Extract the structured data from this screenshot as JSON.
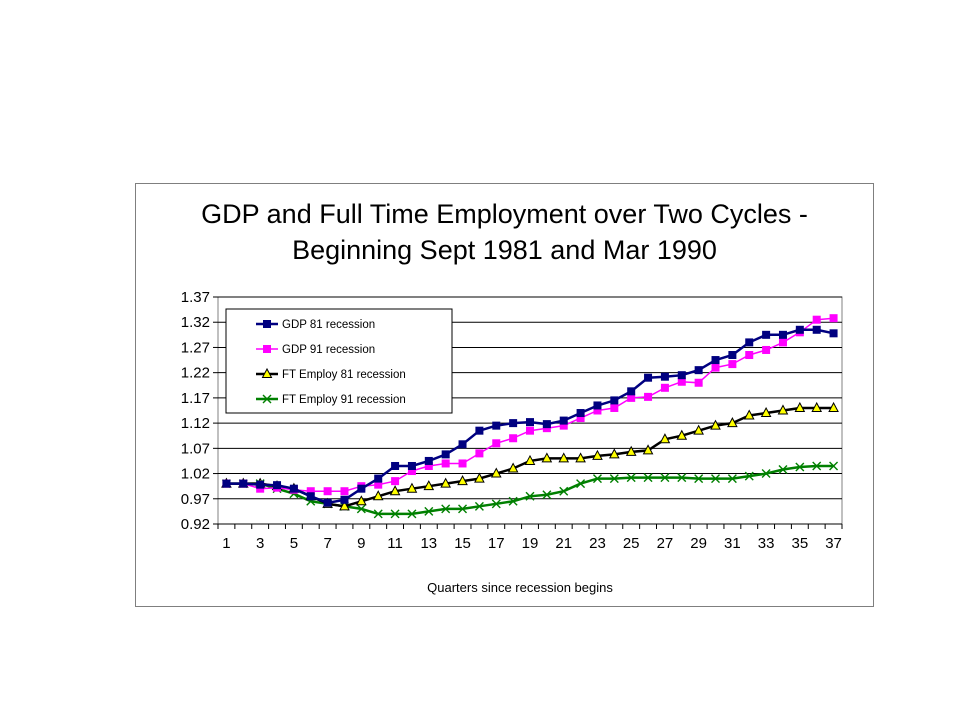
{
  "chart_data": {
    "type": "line",
    "title_line1": "GDP and Full Time Employment over Two Cycles -",
    "title_line2": "Beginning Sept 1981 and Mar 1990",
    "xlabel": "Quarters since recession begins",
    "ylabel": "",
    "ylim": [
      0.92,
      1.37
    ],
    "y_ticks": [
      0.92,
      0.97,
      1.02,
      1.07,
      1.12,
      1.17,
      1.22,
      1.27,
      1.32,
      1.37
    ],
    "x_tick_labels": [
      1,
      3,
      5,
      7,
      9,
      11,
      13,
      15,
      17,
      19,
      21,
      23,
      25,
      27,
      29,
      31,
      33,
      35,
      37
    ],
    "x": [
      1,
      2,
      3,
      4,
      5,
      6,
      7,
      8,
      9,
      10,
      11,
      12,
      13,
      14,
      15,
      16,
      17,
      18,
      19,
      20,
      21,
      22,
      23,
      24,
      25,
      26,
      27,
      28,
      29,
      30,
      31,
      32,
      33,
      34,
      35,
      36,
      37
    ],
    "grid": "horizontal",
    "legend_position": "top-left",
    "series": [
      {
        "name": "GDP 81 recession",
        "color": "#000080",
        "marker": "square",
        "values": [
          1.0,
          1.0,
          0.998,
          0.997,
          0.99,
          0.975,
          0.962,
          0.968,
          0.99,
          1.01,
          1.035,
          1.035,
          1.045,
          1.058,
          1.078,
          1.105,
          1.115,
          1.12,
          1.122,
          1.118,
          1.125,
          1.14,
          1.155,
          1.165,
          1.183,
          1.21,
          1.212,
          1.215,
          1.225,
          1.245,
          1.255,
          1.28,
          1.295,
          1.295,
          1.305,
          1.305,
          1.298
        ]
      },
      {
        "name": "GDP 91 recession",
        "color": "#ff00ff",
        "marker": "square",
        "values": [
          1.0,
          1.0,
          0.99,
          0.992,
          0.988,
          0.985,
          0.985,
          0.985,
          0.995,
          0.998,
          1.005,
          1.025,
          1.035,
          1.04,
          1.04,
          1.06,
          1.08,
          1.09,
          1.105,
          1.11,
          1.115,
          1.13,
          1.145,
          1.15,
          1.17,
          1.172,
          1.19,
          1.202,
          1.2,
          1.23,
          1.237,
          1.255,
          1.265,
          1.28,
          1.3,
          1.325,
          1.328
        ]
      },
      {
        "name": "FT Employ 81 recession",
        "color": "#000000",
        "marker": "triangle",
        "values": [
          1.0,
          1.0,
          1.0,
          0.995,
          0.99,
          0.975,
          0.96,
          0.955,
          0.965,
          0.975,
          0.985,
          0.99,
          0.995,
          1.0,
          1.005,
          1.01,
          1.02,
          1.03,
          1.045,
          1.05,
          1.05,
          1.05,
          1.055,
          1.058,
          1.063,
          1.066,
          1.088,
          1.095,
          1.105,
          1.115,
          1.12,
          1.135,
          1.14,
          1.145,
          1.15,
          1.15,
          1.15
        ]
      },
      {
        "name": "FT Employ 91 recession",
        "color": "#008000",
        "marker": "x",
        "values": [
          1.0,
          1.0,
          1.0,
          0.99,
          0.98,
          0.965,
          0.96,
          0.955,
          0.95,
          0.94,
          0.94,
          0.94,
          0.945,
          0.95,
          0.95,
          0.955,
          0.96,
          0.965,
          0.975,
          0.978,
          0.985,
          1.0,
          1.01,
          1.01,
          1.012,
          1.012,
          1.012,
          1.012,
          1.01,
          1.01,
          1.01,
          1.015,
          1.02,
          1.028,
          1.033,
          1.035,
          1.035
        ]
      }
    ]
  }
}
